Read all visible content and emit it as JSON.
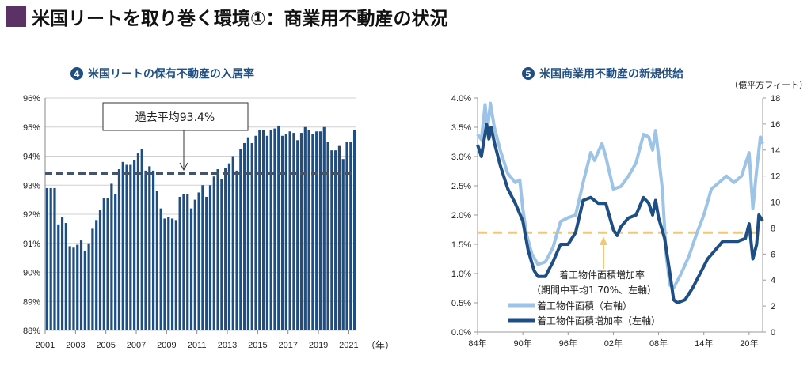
{
  "header": {
    "title": "米国リートを取り巻く環境①：商業用不動産の状況",
    "marker_color": "#5b3166"
  },
  "chart_data": [
    {
      "type": "bar",
      "number": "4",
      "title": "米国リートの保有不動産の入居率",
      "xlabel": "（年）",
      "ylabel": "",
      "ylim": [
        88,
        96
      ],
      "yticks": [
        "88%",
        "89%",
        "90%",
        "91%",
        "92%",
        "93%",
        "94%",
        "95%",
        "96%"
      ],
      "xticks": [
        "2001",
        "2003",
        "2005",
        "2007",
        "2009",
        "2011",
        "2013",
        "2015",
        "2017",
        "2019",
        "2021"
      ],
      "frequency": "quarterly",
      "start": "2001",
      "grid": true,
      "bar_color": "#1f4e82",
      "values": [
        92.9,
        92.9,
        92.9,
        91.65,
        91.9,
        91.7,
        90.9,
        90.85,
        90.95,
        91.1,
        90.75,
        91.0,
        91.5,
        91.8,
        92.15,
        92.55,
        92.55,
        93.05,
        92.7,
        93.55,
        93.8,
        93.7,
        93.7,
        93.85,
        94.1,
        94.25,
        93.5,
        93.65,
        93.5,
        92.8,
        92.2,
        91.85,
        91.9,
        91.85,
        91.8,
        92.6,
        92.7,
        92.7,
        92.2,
        92.5,
        92.75,
        93.0,
        92.6,
        93.0,
        93.3,
        93.55,
        93.2,
        93.6,
        93.75,
        94.0,
        93.5,
        94.25,
        94.45,
        94.65,
        94.45,
        94.7,
        94.9,
        94.9,
        94.7,
        94.9,
        94.95,
        95.05,
        94.7,
        94.75,
        94.85,
        94.8,
        94.55,
        94.8,
        95.0,
        94.9,
        94.75,
        94.85,
        94.85,
        95.0,
        94.5,
        94.2,
        94.2,
        94.35,
        93.9,
        94.5,
        94.5,
        94.9
      ],
      "average": {
        "value": 93.4,
        "label": "過去平均93.4%",
        "color": "#44546a"
      }
    },
    {
      "type": "line",
      "number": "5",
      "title": "米国商業用不動産の新規供給",
      "right_unit": "（億平方フィート）",
      "ylim_left": [
        0,
        4.0
      ],
      "ylim_right": [
        0,
        18
      ],
      "yticks_left": [
        "0.0%",
        "0.5%",
        "1.0%",
        "1.5%",
        "2.0%",
        "2.5%",
        "3.0%",
        "3.5%",
        "4.0%"
      ],
      "yticks_right": [
        "0",
        "2",
        "4",
        "6",
        "8",
        "10",
        "12",
        "14",
        "16",
        "18"
      ],
      "xticks": [
        "84年",
        "90年",
        "96年",
        "02年",
        "08年",
        "14年",
        "20年"
      ],
      "xlim": [
        1984,
        2021.8
      ],
      "series": [
        {
          "name": "着工物件面積（右軸）",
          "axis": "right",
          "color": "#9dc3e6",
          "x": [
            1984,
            1984.5,
            1985,
            1985.3,
            1985.7,
            1986.2,
            1987,
            1988,
            1989,
            1989.6,
            1990,
            1990.5,
            1991.2,
            1992,
            1993,
            1994,
            1995,
            1996,
            1997,
            1998,
            1999,
            1999.5,
            2000.5,
            2001,
            2002,
            2003,
            2004,
            2005,
            2006,
            2006.7,
            2007.2,
            2007.6,
            2008,
            2008.5,
            2009,
            2009.5,
            2010,
            2011,
            2012,
            2013,
            2014,
            2015,
            2016,
            2017,
            2018,
            2019,
            2020,
            2020.5,
            2021,
            2021.5,
            2021.8
          ],
          "y": [
            15.2,
            14.8,
            17.5,
            15.5,
            17.6,
            15.8,
            14.0,
            12.2,
            11.5,
            11.7,
            9.5,
            7.5,
            6.0,
            5.2,
            5.4,
            6.5,
            8.5,
            8.8,
            9.0,
            11.5,
            13.8,
            13.2,
            14.5,
            13.5,
            11.0,
            11.2,
            12.0,
            13.0,
            15.2,
            15.0,
            14.0,
            15.5,
            13.5,
            11.0,
            6.0,
            3.6,
            3.4,
            4.5,
            5.8,
            7.5,
            9.0,
            11.0,
            11.5,
            12.0,
            11.5,
            12.0,
            13.8,
            9.5,
            12.5,
            15.0,
            14.5
          ]
        },
        {
          "name": "着工物件面積増加率（左軸）",
          "axis": "left",
          "color": "#1f4e82",
          "x": [
            1984,
            1984.5,
            1985.2,
            1985.5,
            1985.8,
            1986.3,
            1987,
            1988,
            1989,
            1990,
            1990.7,
            1991.5,
            1992,
            1993,
            1994,
            1995,
            1996,
            1997,
            1998,
            1999,
            2000,
            2001,
            2002,
            2002.5,
            2003,
            2004,
            2005,
            2006,
            2006.7,
            2007.2,
            2007.6,
            2008,
            2008.8,
            2009.5,
            2010,
            2010.5,
            2011.5,
            2012.5,
            2013.5,
            2014.5,
            2015.5,
            2016.5,
            2017.5,
            2018.5,
            2019.5,
            2020,
            2020.5,
            2021,
            2021.3,
            2021.8
          ],
          "y": [
            3.2,
            3.0,
            3.55,
            3.3,
            3.5,
            3.2,
            2.85,
            2.45,
            2.2,
            1.9,
            1.4,
            1.05,
            0.95,
            0.95,
            1.2,
            1.5,
            1.5,
            1.7,
            2.25,
            2.3,
            2.2,
            2.2,
            1.75,
            1.65,
            1.8,
            1.95,
            2.0,
            2.3,
            2.2,
            2.0,
            2.25,
            1.95,
            1.6,
            1.0,
            0.55,
            0.5,
            0.55,
            0.75,
            1.0,
            1.25,
            1.4,
            1.55,
            1.55,
            1.55,
            1.6,
            1.85,
            1.25,
            1.5,
            2.0,
            1.9
          ]
        }
      ],
      "average": {
        "value": 1.7,
        "label_line1": "着工物件面積増加率",
        "label_line2": "（期間中平均1.70%、左軸）",
        "color": "#f2c878"
      },
      "legend_placement": "bottom-left"
    }
  ]
}
